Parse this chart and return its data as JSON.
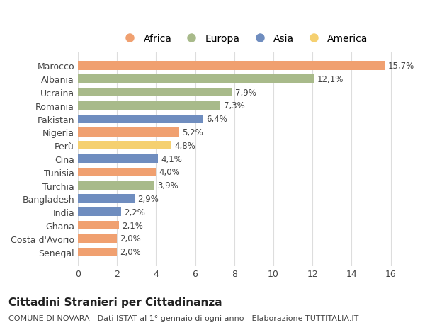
{
  "categories": [
    "Marocco",
    "Albania",
    "Ucraina",
    "Romania",
    "Pakistan",
    "Nigeria",
    "Perù",
    "Cina",
    "Tunisia",
    "Turchia",
    "Bangladesh",
    "India",
    "Ghana",
    "Costa d'Avorio",
    "Senegal"
  ],
  "values": [
    15.7,
    12.1,
    7.9,
    7.3,
    6.4,
    5.2,
    4.8,
    4.1,
    4.0,
    3.9,
    2.9,
    2.2,
    2.1,
    2.0,
    2.0
  ],
  "labels": [
    "15,7%",
    "12,1%",
    "7,9%",
    "7,3%",
    "6,4%",
    "5,2%",
    "4,8%",
    "4,1%",
    "4,0%",
    "3,9%",
    "2,9%",
    "2,2%",
    "2,1%",
    "2,0%",
    "2,0%"
  ],
  "continents": [
    "Africa",
    "Europa",
    "Europa",
    "Europa",
    "Asia",
    "Africa",
    "America",
    "Asia",
    "Africa",
    "Europa",
    "Asia",
    "Asia",
    "Africa",
    "Africa",
    "Africa"
  ],
  "continent_colors": {
    "Africa": "#F0A070",
    "Europa": "#A8BA8A",
    "Asia": "#6F8DBF",
    "America": "#F5D070"
  },
  "legend_order": [
    "Africa",
    "Europa",
    "Asia",
    "America"
  ],
  "title": "Cittadini Stranieri per Cittadinanza",
  "subtitle": "COMUNE DI NOVARA - Dati ISTAT al 1° gennaio di ogni anno - Elaborazione TUTTITALIA.IT",
  "xlim": [
    0,
    17
  ],
  "xticks": [
    0,
    2,
    4,
    6,
    8,
    10,
    12,
    14,
    16
  ],
  "background_color": "#ffffff",
  "grid_color": "#dddddd",
  "bar_height": 0.65,
  "title_fontsize": 11,
  "subtitle_fontsize": 8,
  "tick_fontsize": 9,
  "label_fontsize": 8.5,
  "legend_fontsize": 10
}
